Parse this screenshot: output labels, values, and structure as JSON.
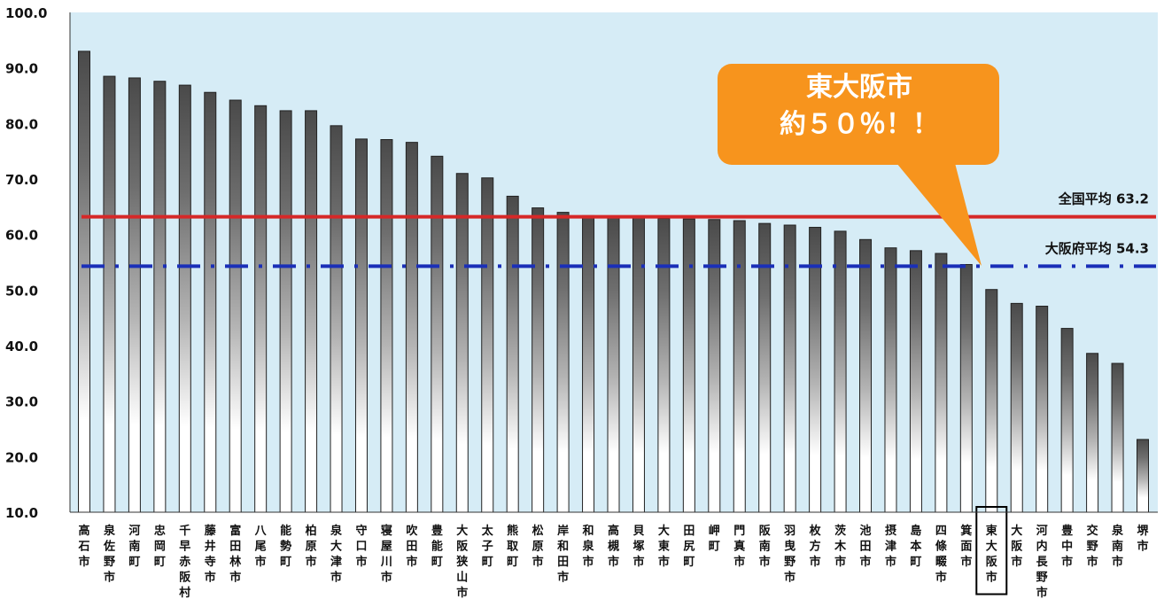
{
  "chart_data": {
    "type": "bar",
    "ylim": [
      10,
      100
    ],
    "yticks": [
      "100.0",
      "90.0",
      "80.0",
      "70.0",
      "60.0",
      "50.0",
      "40.0",
      "30.0",
      "20.0",
      "10.0"
    ],
    "grid": false,
    "categories": [
      "高石市",
      "泉佐野市",
      "河南町",
      "忠岡町",
      "千早赤阪村",
      "藤井寺市",
      "富田林市",
      "八尾市",
      "能勢町",
      "柏原市",
      "泉大津市",
      "守口市",
      "寝屋川市",
      "吹田市",
      "豊能町",
      "大阪狭山市",
      "太子町",
      "熊取町",
      "松原市",
      "岸和田市",
      "和泉市",
      "高槻市",
      "貝塚市",
      "大東市",
      "田尻町",
      "岬町",
      "門真市",
      "阪南市",
      "羽曳野市",
      "枚方市",
      "茨木市",
      "池田市",
      "摂津市",
      "島本町",
      "四條畷市",
      "箕面市",
      "東大阪市",
      "大阪市",
      "河内長野市",
      "豊中市",
      "交野市",
      "泉南市",
      "堺市"
    ],
    "values": [
      93.0,
      88.5,
      88.2,
      87.6,
      86.9,
      85.6,
      84.2,
      83.2,
      82.3,
      82.3,
      79.6,
      77.2,
      77.1,
      76.6,
      74.1,
      71.0,
      70.2,
      66.9,
      64.8,
      64.0,
      63.4,
      63.3,
      63.0,
      62.9,
      62.8,
      62.7,
      62.5,
      62.0,
      61.7,
      61.3,
      60.6,
      59.1,
      57.6,
      57.1,
      56.6,
      54.6,
      50.1,
      47.6,
      47.1,
      43.1,
      38.6,
      36.8,
      23.1
    ],
    "highlight_category": "東大阪市",
    "reference_lines": [
      {
        "label": "全国平均 63.2",
        "value": 63.2,
        "color": "#d62828",
        "style": "solid"
      },
      {
        "label": "大阪府平均 54.3",
        "value": 54.3,
        "color": "#1a2fb8",
        "style": "dash-dot"
      }
    ],
    "annotation": {
      "lines": [
        "東大阪市",
        "約５０％！！"
      ],
      "color": "#f7941d"
    },
    "colors": {
      "plot_background": "#d6ecf6",
      "bar_dark": "#5a5a5a",
      "bar_light": "#ffffff"
    }
  }
}
